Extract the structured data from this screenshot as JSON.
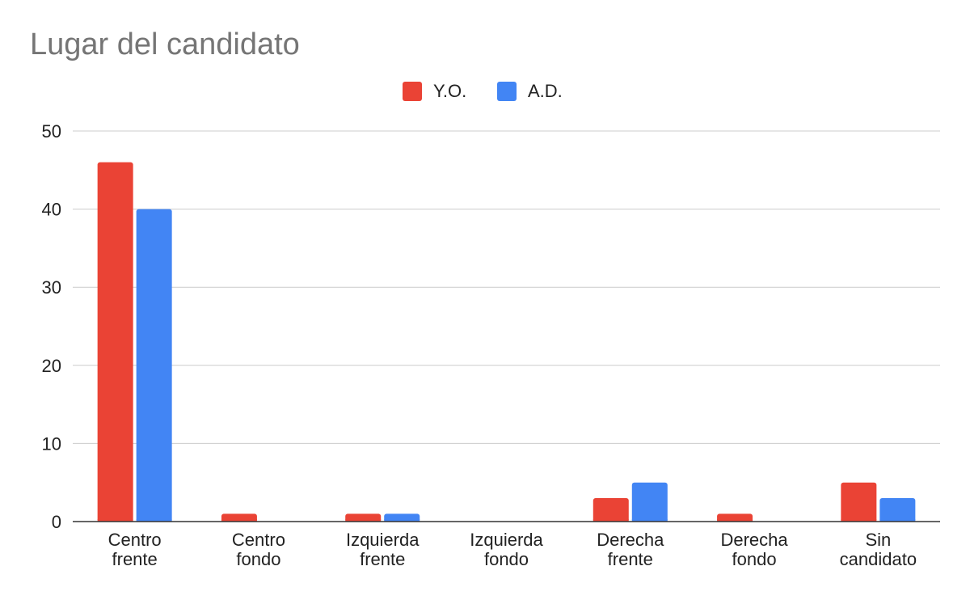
{
  "chart_data": {
    "type": "bar",
    "title": "Lugar del candidato",
    "categories": [
      [
        "Centro",
        "frente"
      ],
      [
        "Centro",
        "fondo"
      ],
      [
        "Izquierda",
        "frente"
      ],
      [
        "Izquierda",
        "fondo"
      ],
      [
        "Derecha",
        "frente"
      ],
      [
        "Derecha",
        "fondo"
      ],
      [
        "Sin",
        "candidato"
      ]
    ],
    "series": [
      {
        "name": "Y.O.",
        "color": "#ea4335",
        "values": [
          46,
          1,
          1,
          0,
          3,
          1,
          5
        ]
      },
      {
        "name": "A.D.",
        "color": "#4285f4",
        "values": [
          40,
          0,
          1,
          0,
          5,
          0,
          3
        ]
      }
    ],
    "ylim": [
      0,
      50
    ],
    "yticks": [
      0,
      10,
      20,
      30,
      40,
      50
    ],
    "grid": true,
    "legend": "top-center",
    "xlabel": "",
    "ylabel": ""
  }
}
